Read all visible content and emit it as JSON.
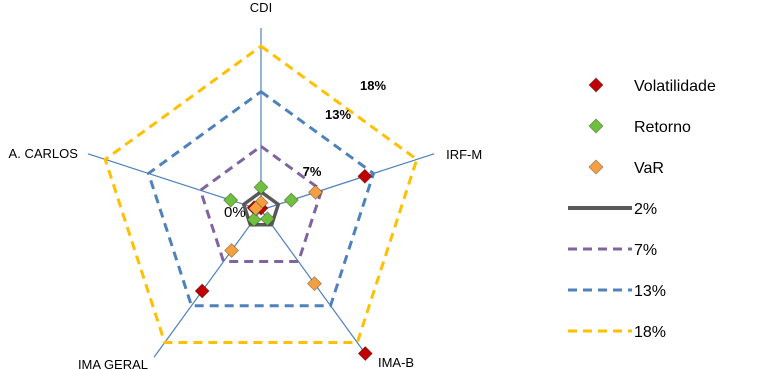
{
  "chart_data": {
    "type": "radar",
    "axes": [
      "CDI",
      "IRF-M",
      "IMA-B",
      "IMA GERAL",
      "A. CARLOS"
    ],
    "range": [
      0,
      20
    ],
    "center_label": "0%",
    "ring_labels": [
      "7%",
      "13%",
      "18%"
    ],
    "series": [
      {
        "name": "Volatilidade",
        "marker": "diamond",
        "color": "#c00000",
        "values": [
          0.2,
          12.0,
          19.5,
          11.0,
          0.8
        ]
      },
      {
        "name": "Retorno",
        "marker": "diamond",
        "color": "#70c040",
        "values": [
          2.5,
          3.5,
          1.2,
          1.3,
          3.5
        ]
      },
      {
        "name": "VaR",
        "marker": "diamond",
        "color": "#f4a040",
        "values": [
          0.8,
          6.3,
          10.0,
          5.5,
          0.6
        ]
      }
    ],
    "reference_rings": [
      {
        "name": "2%",
        "value": 2,
        "color": "#595959",
        "style": "solid"
      },
      {
        "name": "7%",
        "value": 7,
        "color": "#8064a2",
        "style": "dashed"
      },
      {
        "name": "13%",
        "value": 13,
        "color": "#4f81bd",
        "style": "dashed"
      },
      {
        "name": "18%",
        "value": 18,
        "color": "#ffc000",
        "style": "dashed"
      }
    ],
    "legend_position": "right"
  }
}
